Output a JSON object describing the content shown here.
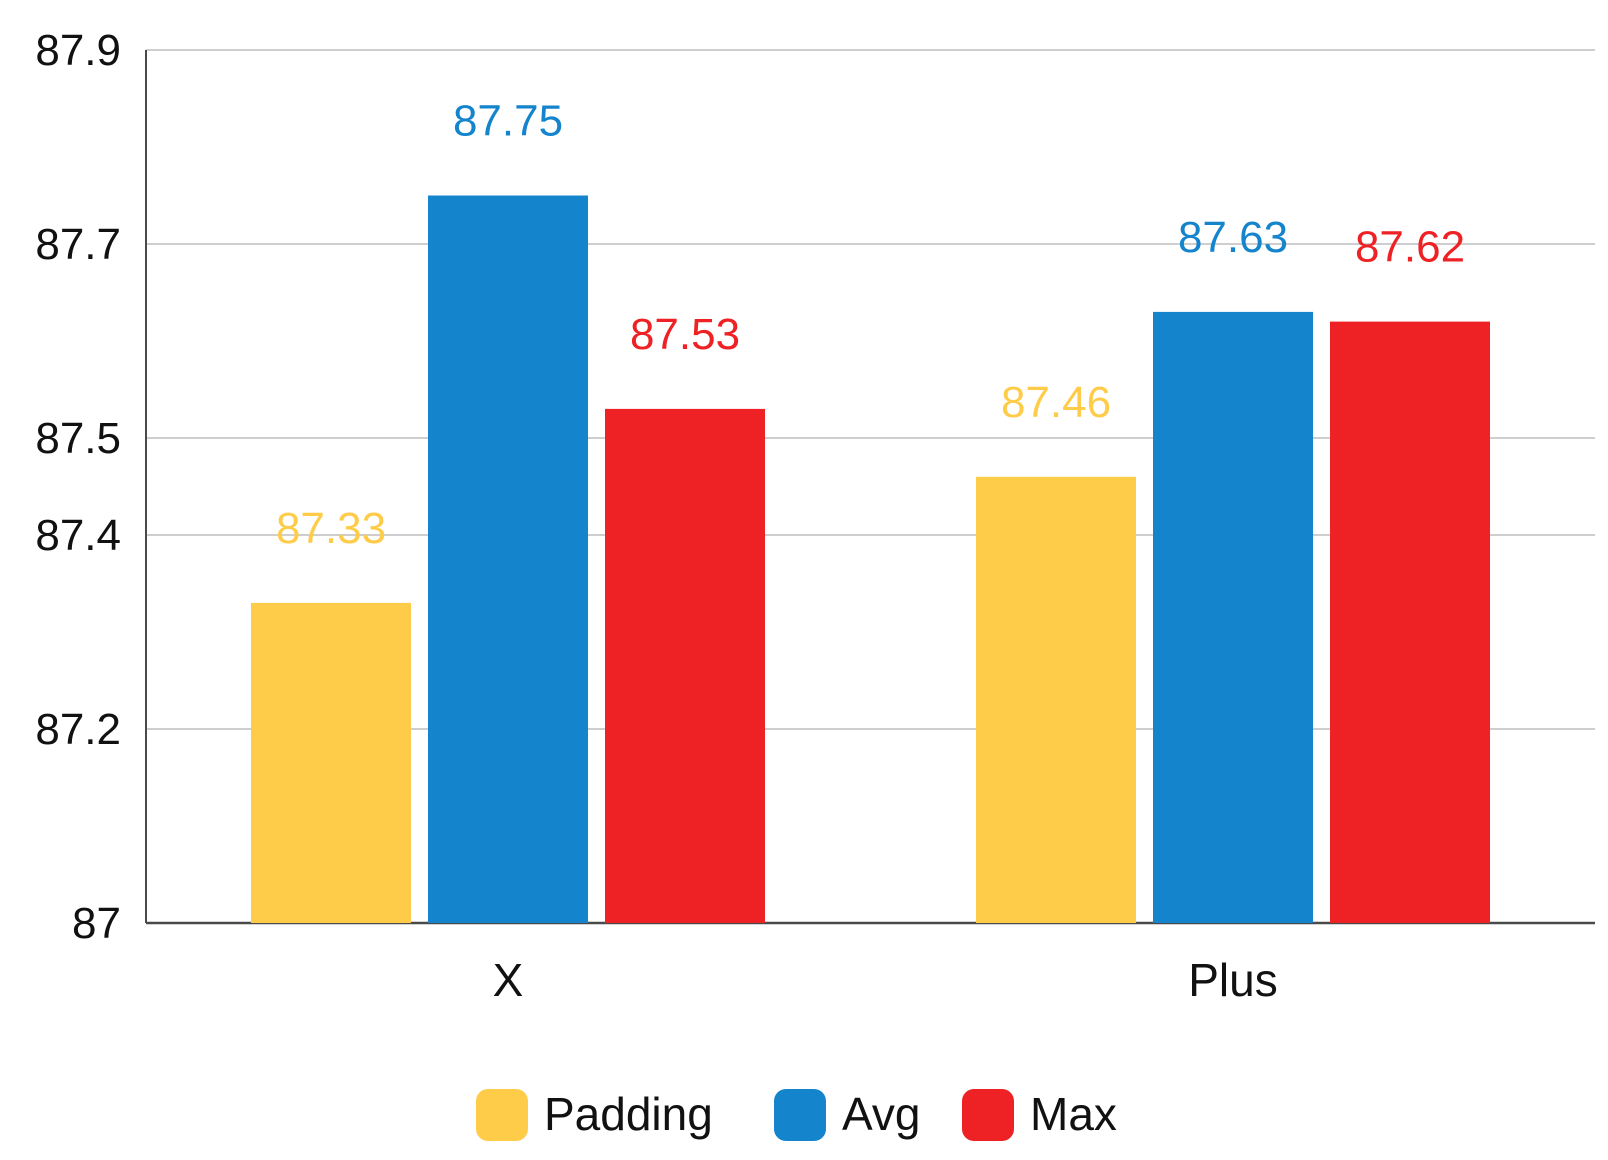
{
  "chart_data": {
    "type": "bar",
    "title": "",
    "xlabel": "",
    "ylabel": "",
    "categories": [
      "X",
      "Plus"
    ],
    "y_ticks": [
      "87",
      "87.2",
      "87.4",
      "87.5",
      "87.7",
      "87.9"
    ],
    "ylim": [
      87.0,
      87.9
    ],
    "series": [
      {
        "name": "Padding",
        "color": "#FFCC4A",
        "values": [
          87.33,
          87.46
        ],
        "value_labels": [
          "87.33",
          "87.46"
        ]
      },
      {
        "name": "Avg",
        "color": "#1484CC",
        "values": [
          87.75,
          87.63
        ],
        "value_labels": [
          "87.75",
          "87.63"
        ]
      },
      {
        "name": "Max",
        "color": "#EE2224",
        "values": [
          87.53,
          87.62
        ],
        "value_labels": [
          "87.53",
          "87.62"
        ]
      }
    ],
    "grid": true,
    "legend_position": "bottom-center"
  }
}
